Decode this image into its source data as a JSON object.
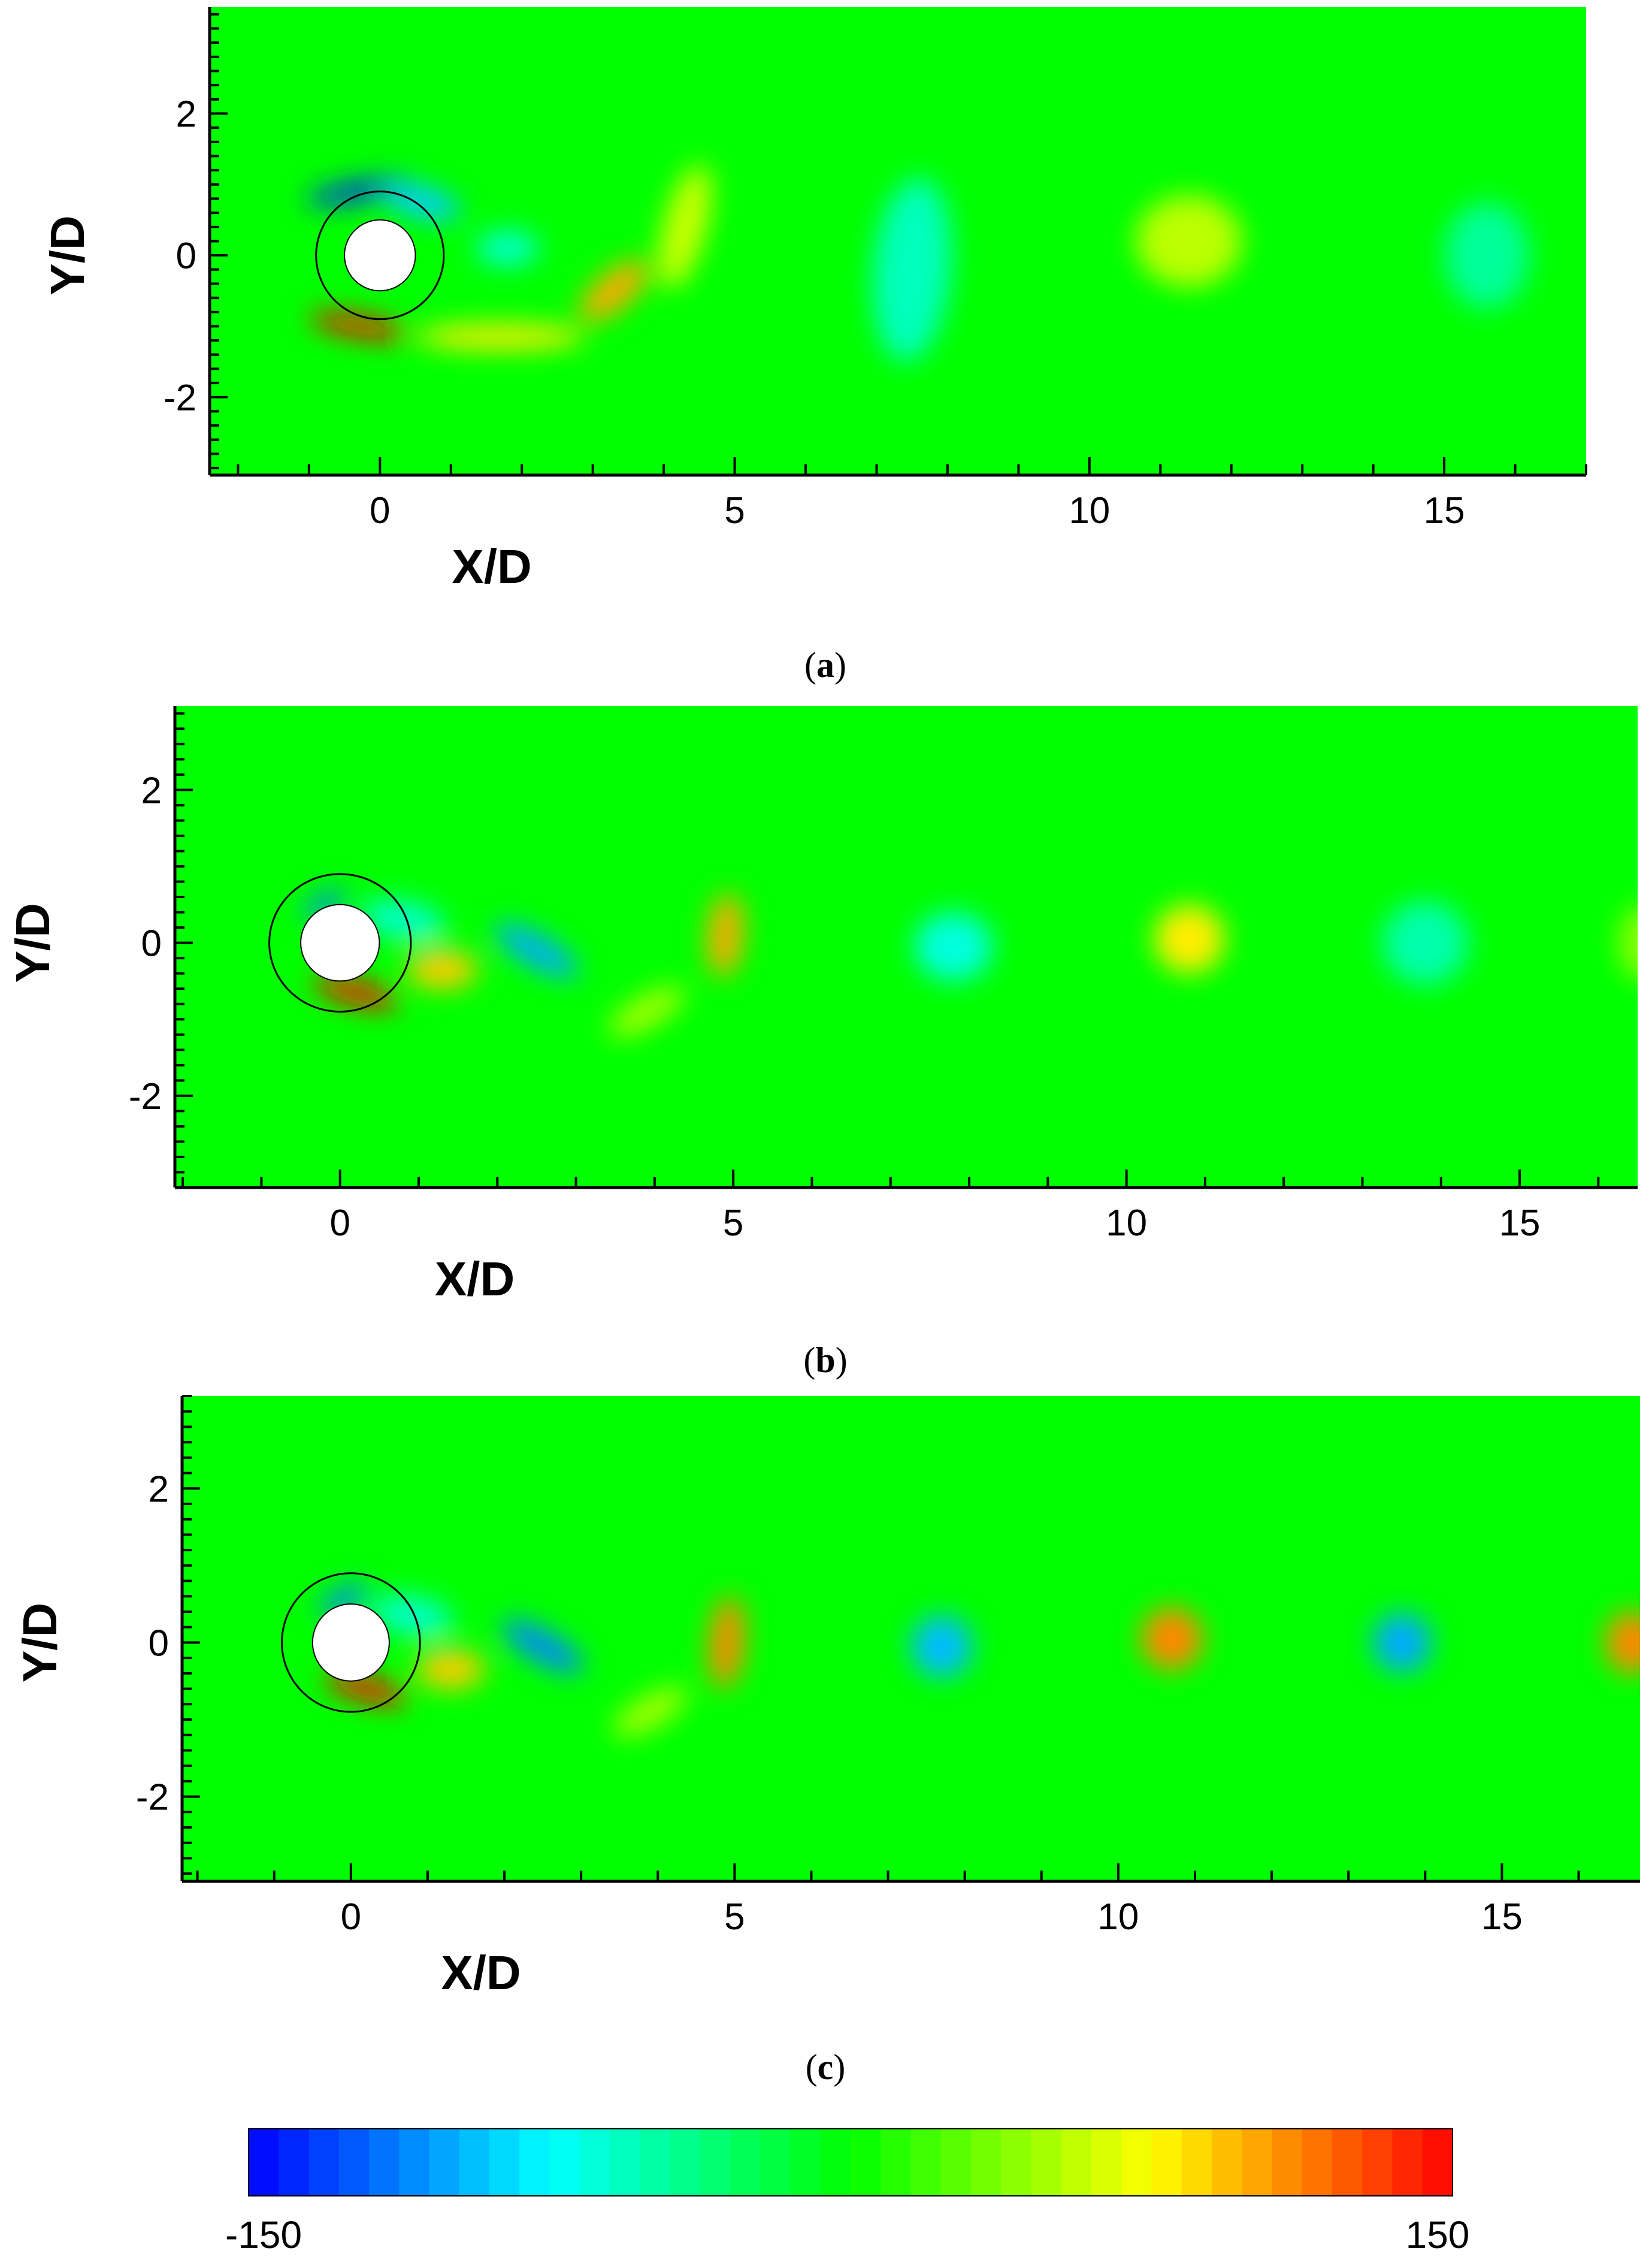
{
  "chart_data": [
    {
      "type": "heatmap",
      "panel": "a",
      "caption_letter": "a",
      "title": "",
      "xlabel": "X/D",
      "ylabel": "Y/D",
      "xlim": [
        -2.4,
        17.0
      ],
      "ylim": [
        -3.1,
        3.5
      ],
      "x_ticks": [
        0,
        5,
        10,
        15
      ],
      "y_ticks": [
        -2,
        0,
        2
      ],
      "cylinder": {
        "x": 0,
        "y": 0,
        "diameter": 1.0,
        "outline_diameter": 1.8
      },
      "vortices": [
        {
          "x": -0.3,
          "y": 0.9,
          "value": -140,
          "sx": 0.75,
          "sy": 0.13,
          "rot": 10
        },
        {
          "x": 0.6,
          "y": 0.75,
          "value": -90,
          "sx": 0.55,
          "sy": 0.22,
          "rot": -15
        },
        {
          "x": 1.8,
          "y": 0.1,
          "value": -60,
          "sx": 0.45,
          "sy": 0.25,
          "rot": 0
        },
        {
          "x": -0.3,
          "y": -1.0,
          "value": 145,
          "sx": 0.7,
          "sy": 0.14,
          "rot": -10
        },
        {
          "x": 1.7,
          "y": -1.15,
          "value": 80,
          "sx": 1.2,
          "sy": 0.18,
          "rot": 0
        },
        {
          "x": 3.3,
          "y": -0.5,
          "value": 100,
          "sx": 0.6,
          "sy": 0.25,
          "rot": 40
        },
        {
          "x": 4.3,
          "y": 0.4,
          "value": 60,
          "sx": 0.3,
          "sy": 0.9,
          "rot": -15
        },
        {
          "x": 7.5,
          "y": -0.2,
          "value": -55,
          "sx": 0.55,
          "sy": 1.3,
          "rot": -5
        },
        {
          "x": 11.4,
          "y": 0.2,
          "value": 55,
          "sx": 0.75,
          "sy": 0.65,
          "rot": 0
        },
        {
          "x": 15.6,
          "y": 0.0,
          "value": -45,
          "sx": 0.6,
          "sy": 0.75,
          "rot": 0
        }
      ]
    },
    {
      "type": "heatmap",
      "panel": "b",
      "caption_letter": "b",
      "title": "",
      "xlabel": "X/D",
      "ylabel": "Y/D",
      "xlim": [
        -2.1,
        16.5
      ],
      "ylim": [
        -3.2,
        3.1
      ],
      "x_ticks": [
        0,
        5,
        10,
        15
      ],
      "y_ticks": [
        -2,
        0,
        2
      ],
      "cylinder": {
        "x": 0,
        "y": 0,
        "diameter": 1.0,
        "outline_diameter": 1.8
      },
      "vortices": [
        {
          "x": -0.2,
          "y": 0.5,
          "value": -110,
          "sx": 0.3,
          "sy": 0.12,
          "rot": 30
        },
        {
          "x": 0.8,
          "y": 0.3,
          "value": -60,
          "sx": 0.55,
          "sy": 0.25,
          "rot": -10
        },
        {
          "x": 2.5,
          "y": -0.1,
          "value": -100,
          "sx": 0.6,
          "sy": 0.2,
          "rot": -30
        },
        {
          "x": 0.2,
          "y": -0.65,
          "value": 145,
          "sx": 0.55,
          "sy": 0.15,
          "rot": -15
        },
        {
          "x": 1.3,
          "y": -0.35,
          "value": 90,
          "sx": 0.45,
          "sy": 0.25,
          "rot": 0
        },
        {
          "x": 4.9,
          "y": 0.1,
          "value": 100,
          "sx": 0.22,
          "sy": 0.55,
          "rot": -5
        },
        {
          "x": 3.9,
          "y": -0.9,
          "value": 50,
          "sx": 0.55,
          "sy": 0.2,
          "rot": 30
        },
        {
          "x": 7.8,
          "y": -0.05,
          "value": -65,
          "sx": 0.5,
          "sy": 0.45,
          "rot": 0
        },
        {
          "x": 10.8,
          "y": 0.05,
          "value": 80,
          "sx": 0.45,
          "sy": 0.45,
          "rot": 0
        },
        {
          "x": 13.8,
          "y": 0.0,
          "value": -50,
          "sx": 0.55,
          "sy": 0.55,
          "rot": 0
        },
        {
          "x": 16.6,
          "y": 0.0,
          "value": 40,
          "sx": 0.35,
          "sy": 0.5,
          "rot": 0
        }
      ]
    },
    {
      "type": "heatmap",
      "panel": "c",
      "caption_letter": "c",
      "title": "",
      "xlabel": "X/D",
      "ylabel": "Y/D",
      "xlim": [
        -2.2,
        16.8
      ],
      "ylim": [
        -3.1,
        3.2
      ],
      "x_ticks": [
        0,
        5,
        10,
        15
      ],
      "y_ticks": [
        -2,
        0,
        2
      ],
      "cylinder": {
        "x": 0,
        "y": 0,
        "diameter": 1.0,
        "outline_diameter": 1.8
      },
      "vortices": [
        {
          "x": -0.1,
          "y": 0.55,
          "value": -110,
          "sx": 0.35,
          "sy": 0.14,
          "rot": 30
        },
        {
          "x": 0.8,
          "y": 0.35,
          "value": -60,
          "sx": 0.55,
          "sy": 0.25,
          "rot": -10
        },
        {
          "x": 2.5,
          "y": -0.05,
          "value": -110,
          "sx": 0.6,
          "sy": 0.2,
          "rot": -30
        },
        {
          "x": 0.2,
          "y": -0.6,
          "value": 145,
          "sx": 0.55,
          "sy": 0.15,
          "rot": -15
        },
        {
          "x": 1.3,
          "y": -0.35,
          "value": 90,
          "sx": 0.45,
          "sy": 0.25,
          "rot": 0
        },
        {
          "x": 4.9,
          "y": 0.0,
          "value": 110,
          "sx": 0.22,
          "sy": 0.6,
          "rot": -5
        },
        {
          "x": 3.9,
          "y": -0.9,
          "value": 50,
          "sx": 0.55,
          "sy": 0.2,
          "rot": 30
        },
        {
          "x": 7.7,
          "y": -0.05,
          "value": -95,
          "sx": 0.4,
          "sy": 0.4,
          "rot": 0
        },
        {
          "x": 10.7,
          "y": 0.05,
          "value": 110,
          "sx": 0.4,
          "sy": 0.4,
          "rot": 0
        },
        {
          "x": 13.7,
          "y": 0.0,
          "value": -100,
          "sx": 0.38,
          "sy": 0.38,
          "rot": 0
        },
        {
          "x": 16.7,
          "y": 0.0,
          "value": 110,
          "sx": 0.35,
          "sy": 0.4,
          "rot": 0
        }
      ]
    }
  ],
  "colorbar": {
    "min_label": "-150",
    "max_label": "150",
    "min": -150,
    "max": 150,
    "colormap": [
      "#0000ff",
      "#00ffff",
      "#00ff00",
      "#ffff00",
      "#ff0000"
    ],
    "bands": 40
  },
  "colors": {
    "background_field": "#00ff00",
    "cylinder_fill": "#ffffff",
    "outline": "#000000"
  }
}
